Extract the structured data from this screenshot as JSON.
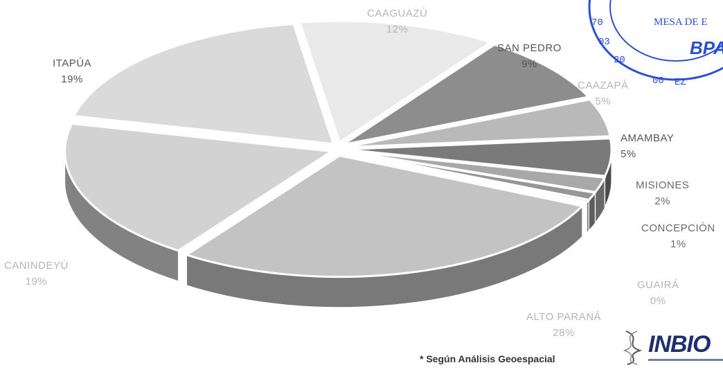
{
  "chart_data": {
    "type": "pie",
    "title": "",
    "slices": [
      {
        "label": "CAAGUAZÚ",
        "pct_label": "12%",
        "value": 12,
        "color": "#e9e9e9"
      },
      {
        "label": "SAN PEDRO",
        "pct_label": "9%",
        "value": 9,
        "color": "#8d8d8d"
      },
      {
        "label": "CAAZAPÁ",
        "pct_label": "5%",
        "value": 5,
        "color": "#b9b9b9"
      },
      {
        "label": "AMAMBAY",
        "pct_label": "5%",
        "value": 5,
        "color": "#7a7a7a"
      },
      {
        "label": "MISIONES",
        "pct_label": "2%",
        "value": 2,
        "color": "#a8a8a8"
      },
      {
        "label": "CONCEPCIÓN",
        "pct_label": "1%",
        "value": 1,
        "color": "#969696"
      },
      {
        "label": "GUAIRÁ",
        "pct_label": "0%",
        "value": 0.3,
        "color": "#cfcfcf"
      },
      {
        "label": "ALTO PARANÁ",
        "pct_label": "28%",
        "value": 28,
        "color": "#c3c3c3"
      },
      {
        "label": "CANINDEYÚ",
        "pct_label": "19%",
        "value": 19,
        "color": "#d2d2d2"
      },
      {
        "label": "ITAPÚA",
        "pct_label": "19%",
        "value": 19,
        "color": "#dadada"
      }
    ],
    "exploded": true,
    "style": "3d"
  },
  "footnote": "* Según Análisis Geoespacial",
  "logo_text": "INBIO",
  "stamp_text": "MESA DE E",
  "stamp_color": "#2a4fd0"
}
